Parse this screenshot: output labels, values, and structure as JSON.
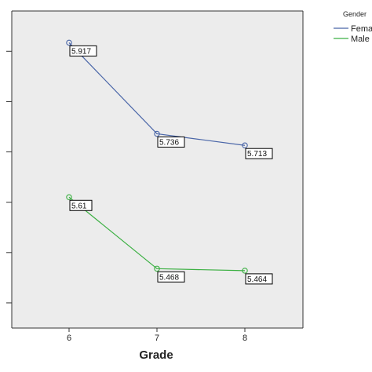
{
  "chart_data": {
    "type": "line",
    "title": "",
    "xlabel": "Grade",
    "ylabel": "",
    "categories": [
      "6",
      "7",
      "8"
    ],
    "ylim": [
      5.35,
      5.98
    ],
    "grid": false,
    "legend": {
      "title": "Gender",
      "placement": "top-right",
      "entries": [
        "Fema",
        "Male"
      ]
    },
    "series": [
      {
        "name": "Fema",
        "color": "#4a66a8",
        "values": [
          5.917,
          5.736,
          5.713
        ],
        "labels": [
          "5.917",
          "5.736",
          "5.713"
        ]
      },
      {
        "name": "Male",
        "color": "#3cb043",
        "values": [
          5.61,
          5.468,
          5.464
        ],
        "labels": [
          "5.61",
          "5.468",
          "5.464"
        ]
      }
    ]
  }
}
